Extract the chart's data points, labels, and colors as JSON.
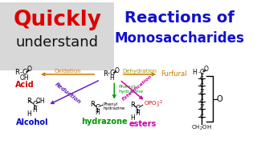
{
  "bg_color": "#ffffff",
  "left_bg": "#d8d8d8",
  "title_quickly": "Quickly",
  "title_understand": "understand",
  "title_reactions": "Reactions of",
  "title_monosaccharides": "Monosaccharides",
  "quickly_color": "#dd0000",
  "understand_color": "#111111",
  "reactions_color": "#1111cc",
  "mono_color": "#1111cc",
  "oxidation_color": "#cc7700",
  "reduction_color": "#6622bb",
  "phenyl_color": "#009900",
  "esterification_color": "#cc00aa",
  "dehydration_color": "#999900",
  "furfural_color": "#cc7700",
  "acid_color": "#cc0000",
  "alcohol_color": "#0000cc",
  "hydrazone_color": "#009900",
  "esters_color": "#cc00aa",
  "arrow_green": "#009900",
  "arrow_orange": "#cc7700",
  "arrow_purple": "#6622bb",
  "arrow_magenta": "#cc00aa"
}
